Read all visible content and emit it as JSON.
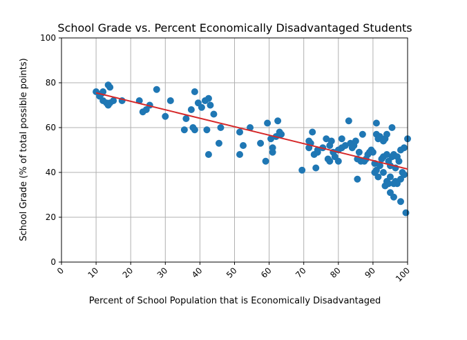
{
  "chart_data": {
    "type": "scatter",
    "title": "School Grade vs. Percent Economically Disadvantaged Students",
    "xlabel": "Percent of School Population that is Economically Disadvantaged",
    "ylabel": "School Grade (% of total possible points)",
    "xlim": [
      0,
      100
    ],
    "ylim": [
      0,
      100
    ],
    "xticks": [
      "0",
      "10",
      "20",
      "30",
      "40",
      "50",
      "60",
      "70",
      "80",
      "90",
      "100"
    ],
    "yticks": [
      "0",
      "20",
      "40",
      "60",
      "80",
      "100"
    ],
    "grid": true,
    "point_color": "#1f77b4",
    "trend_color": "#d62728",
    "trend_line": [
      [
        10,
        75.5
      ],
      [
        100,
        41.5
      ]
    ],
    "points": [
      [
        10,
        76
      ],
      [
        11,
        74
      ],
      [
        11.5,
        75
      ],
      [
        12,
        76
      ],
      [
        12,
        72
      ],
      [
        13,
        71
      ],
      [
        13.5,
        70
      ],
      [
        13.5,
        79
      ],
      [
        14,
        78
      ],
      [
        14,
        71
      ],
      [
        15,
        72
      ],
      [
        17.5,
        72
      ],
      [
        22.5,
        72
      ],
      [
        23.5,
        67
      ],
      [
        24.5,
        68
      ],
      [
        25.5,
        70
      ],
      [
        27.5,
        77
      ],
      [
        30,
        65
      ],
      [
        31.5,
        72
      ],
      [
        35.5,
        59
      ],
      [
        36,
        64
      ],
      [
        37.5,
        68
      ],
      [
        38,
        60
      ],
      [
        38.5,
        59
      ],
      [
        38.5,
        76
      ],
      [
        39.5,
        71
      ],
      [
        40.5,
        69
      ],
      [
        41.5,
        72
      ],
      [
        42,
        59
      ],
      [
        42.5,
        73
      ],
      [
        42.5,
        48
      ],
      [
        43,
        70
      ],
      [
        44,
        66
      ],
      [
        45.5,
        53
      ],
      [
        46,
        60
      ],
      [
        51.5,
        58
      ],
      [
        51.5,
        48
      ],
      [
        52.5,
        52
      ],
      [
        54.5,
        60
      ],
      [
        57.5,
        53
      ],
      [
        59,
        45
      ],
      [
        59.5,
        62
      ],
      [
        60.5,
        55
      ],
      [
        61,
        49
      ],
      [
        61,
        51
      ],
      [
        62,
        56
      ],
      [
        62.5,
        63
      ],
      [
        63,
        58
      ],
      [
        63.5,
        57
      ],
      [
        69.5,
        41
      ],
      [
        71.5,
        54
      ],
      [
        71.5,
        51
      ],
      [
        72,
        53
      ],
      [
        72.5,
        58
      ],
      [
        73,
        48
      ],
      [
        73.5,
        42
      ],
      [
        74,
        49
      ],
      [
        74,
        50
      ],
      [
        75.5,
        51
      ],
      [
        76.5,
        55
      ],
      [
        77,
        46
      ],
      [
        77.5,
        45
      ],
      [
        77.5,
        52
      ],
      [
        78,
        54
      ],
      [
        78.5,
        49
      ],
      [
        79,
        47
      ],
      [
        80,
        45
      ],
      [
        80,
        50
      ],
      [
        81,
        55
      ],
      [
        81,
        51
      ],
      [
        82,
        52
      ],
      [
        83,
        63
      ],
      [
        83.5,
        53
      ],
      [
        84,
        51
      ],
      [
        84.5,
        52
      ],
      [
        85,
        54
      ],
      [
        85.5,
        37
      ],
      [
        85.5,
        46
      ],
      [
        86,
        49
      ],
      [
        86.5,
        45
      ],
      [
        87,
        57
      ],
      [
        87.5,
        45
      ],
      [
        88,
        46
      ],
      [
        88.5,
        48
      ],
      [
        89,
        49
      ],
      [
        89.5,
        50
      ],
      [
        90,
        49
      ],
      [
        90.5,
        44
      ],
      [
        90.5,
        40
      ],
      [
        91,
        41
      ],
      [
        91,
        62
      ],
      [
        91,
        57
      ],
      [
        91.5,
        38
      ],
      [
        91.5,
        55
      ],
      [
        92,
        56
      ],
      [
        92,
        43
      ],
      [
        92.5,
        46
      ],
      [
        93,
        40
      ],
      [
        93,
        47
      ],
      [
        93,
        54
      ],
      [
        93.5,
        55
      ],
      [
        93.5,
        34
      ],
      [
        94,
        36
      ],
      [
        94,
        48
      ],
      [
        94,
        57
      ],
      [
        94.5,
        35
      ],
      [
        94.5,
        45
      ],
      [
        95,
        31
      ],
      [
        95,
        38
      ],
      [
        95,
        43
      ],
      [
        95.5,
        60
      ],
      [
        95.5,
        47
      ],
      [
        96,
        35
      ],
      [
        96,
        29
      ],
      [
        96,
        48
      ],
      [
        96.5,
        36
      ],
      [
        96.5,
        42
      ],
      [
        97,
        47
      ],
      [
        97,
        35
      ],
      [
        97.5,
        45
      ],
      [
        98,
        27
      ],
      [
        98,
        37
      ],
      [
        98,
        50
      ],
      [
        98.5,
        40
      ],
      [
        99,
        39
      ],
      [
        99,
        51
      ],
      [
        99.5,
        22
      ],
      [
        100,
        55
      ]
    ]
  }
}
